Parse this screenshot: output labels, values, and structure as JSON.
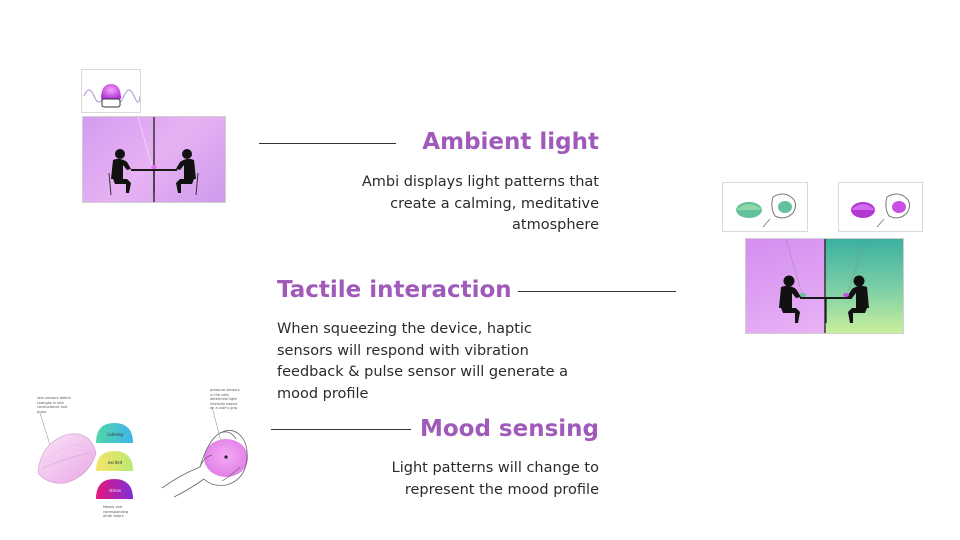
{
  "sections": [
    {
      "title": "Ambient light",
      "body_lines": [
        "Ambi displays light patterns that",
        "create a calming, meditative",
        "atmosphere"
      ]
    },
    {
      "title": "Tactile interaction",
      "body_lines": [
        "When squeezing the device, haptic",
        "sensors will respond with vibration",
        "feedback & pulse sensor will generate a",
        "mood profile"
      ]
    },
    {
      "title": "Mood sensing",
      "body_lines": [
        "Light patterns will change to",
        "represent the mood profile"
      ]
    }
  ],
  "sketch": {
    "note_skin": "skin sensors detect changes in skin conductance and pulse",
    "note_pressure": "pressure sensors in the cells determine light intensity based on a user's grip",
    "blob_labels": [
      "calming",
      "excited",
      "stress"
    ],
    "legend": "Moods and corresponding Ambi colors"
  },
  "colors": {
    "accent": "#a05ab9",
    "purple_glow": "#e9a9f5",
    "teal": "#3fb39c",
    "lime": "#c9ef9c"
  }
}
